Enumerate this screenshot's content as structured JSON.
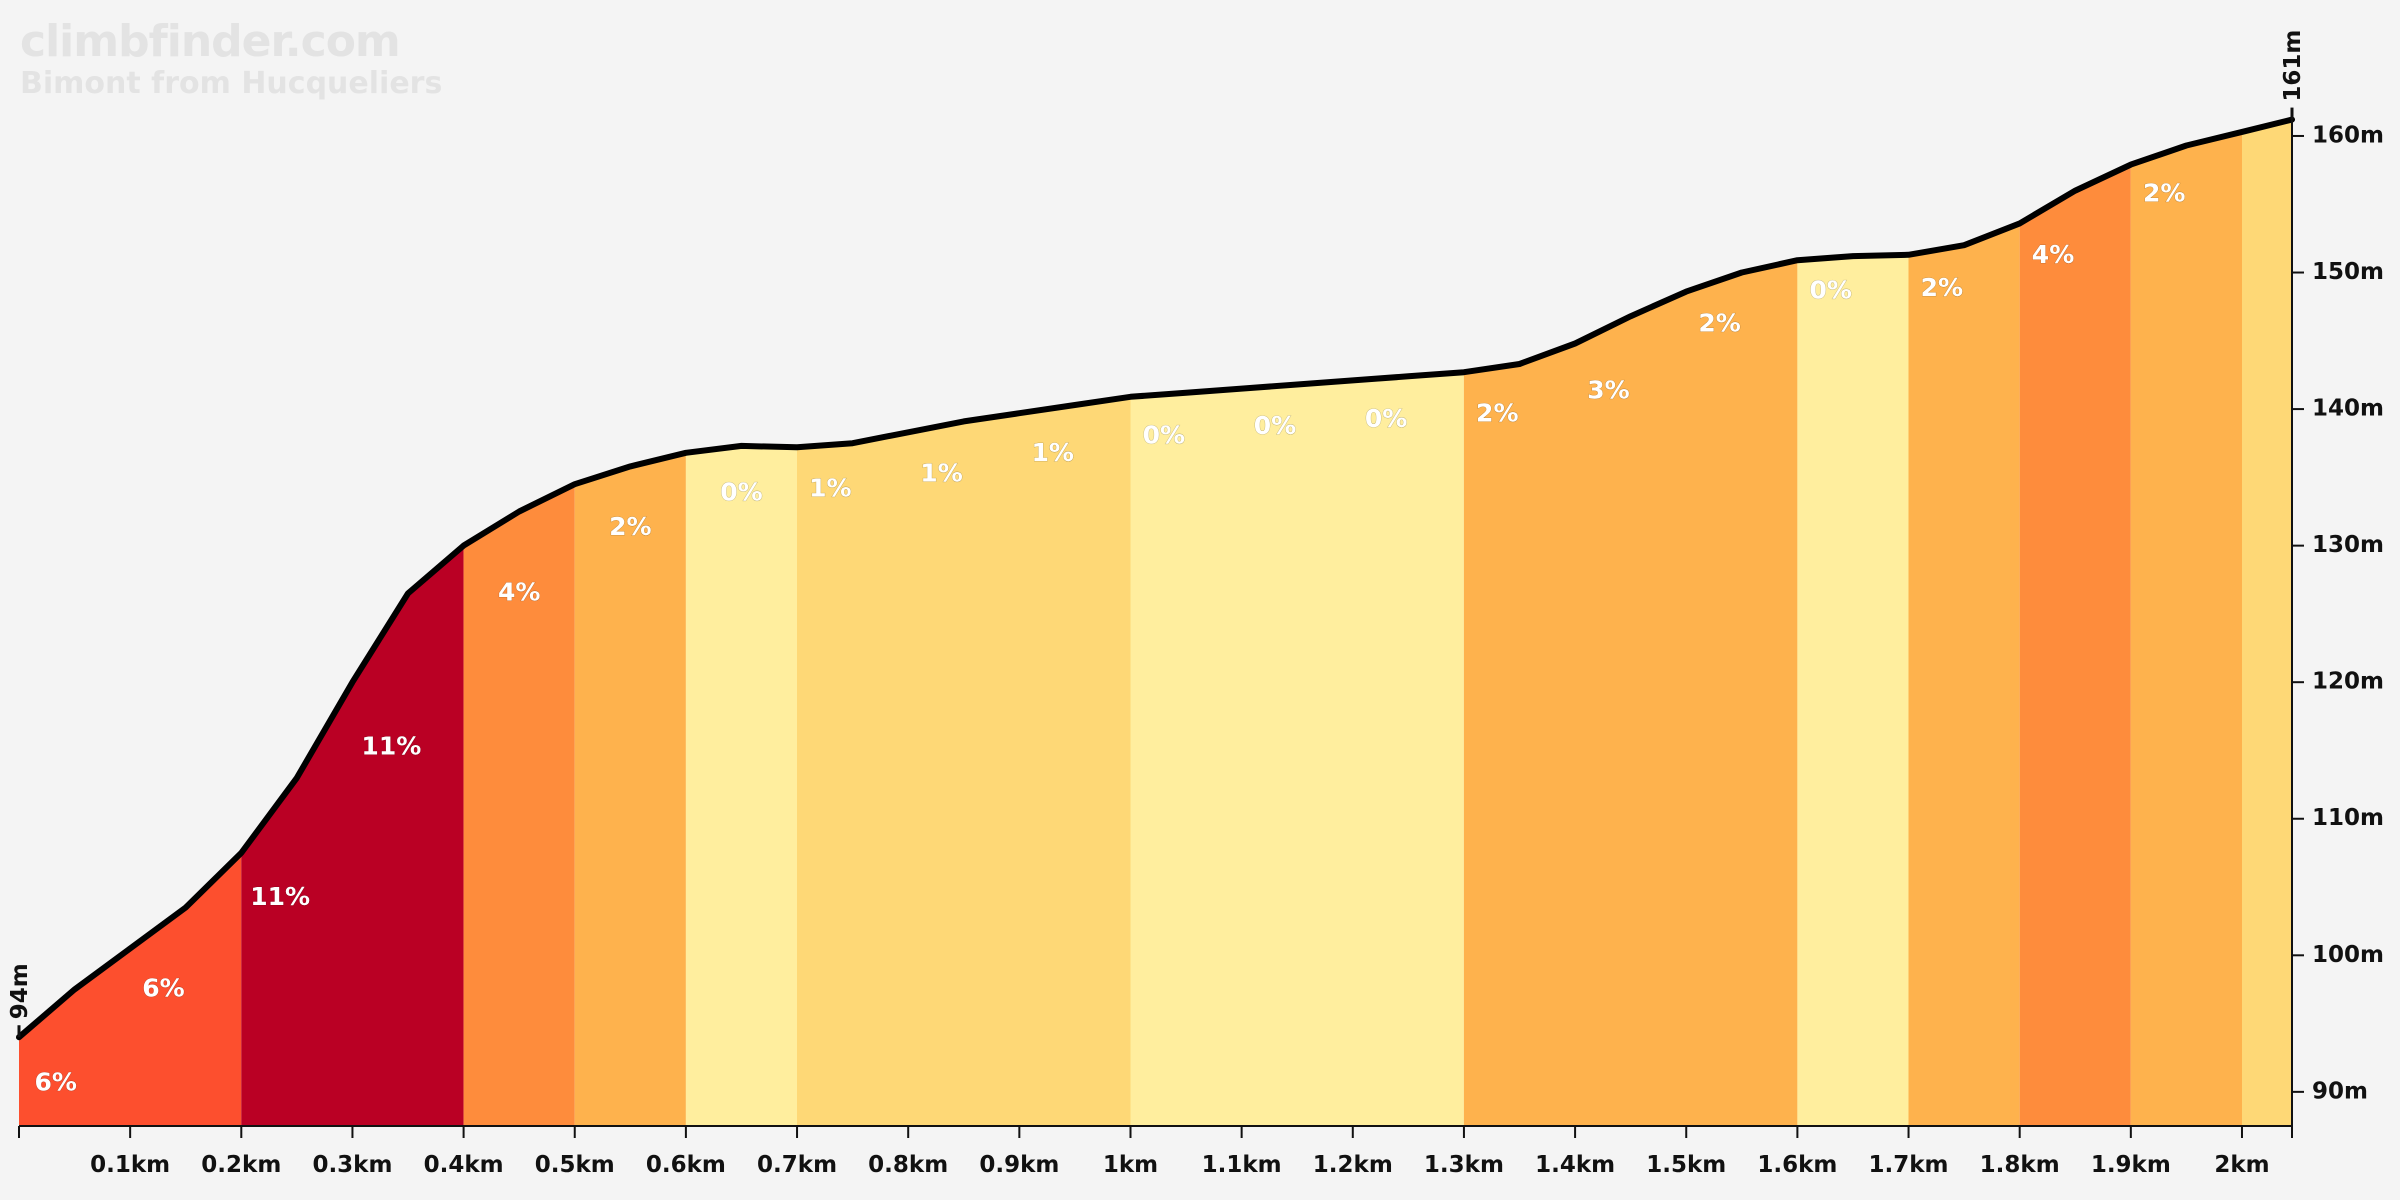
{
  "brand": {
    "site": "climbfinder.com",
    "climb": "Bimont from Hucqueliers"
  },
  "chart_data": {
    "type": "area",
    "title": "",
    "xlabel": "",
    "ylabel": "",
    "xlim": [
      0,
      2.045
    ],
    "ylim": [
      87.5,
      163
    ],
    "start_label": "94m",
    "end_label": "161m",
    "x_ticks": [
      {
        "v": 0.1,
        "label": "0.1km"
      },
      {
        "v": 0.2,
        "label": "0.2km"
      },
      {
        "v": 0.3,
        "label": "0.3km"
      },
      {
        "v": 0.4,
        "label": "0.4km"
      },
      {
        "v": 0.5,
        "label": "0.5km"
      },
      {
        "v": 0.6,
        "label": "0.6km"
      },
      {
        "v": 0.7,
        "label": "0.7km"
      },
      {
        "v": 0.8,
        "label": "0.8km"
      },
      {
        "v": 0.9,
        "label": "0.9km"
      },
      {
        "v": 1.0,
        "label": "1km"
      },
      {
        "v": 1.1,
        "label": "1.1km"
      },
      {
        "v": 1.2,
        "label": "1.2km"
      },
      {
        "v": 1.3,
        "label": "1.3km"
      },
      {
        "v": 1.4,
        "label": "1.4km"
      },
      {
        "v": 1.5,
        "label": "1.5km"
      },
      {
        "v": 1.6,
        "label": "1.6km"
      },
      {
        "v": 1.7,
        "label": "1.7km"
      },
      {
        "v": 1.8,
        "label": "1.8km"
      },
      {
        "v": 1.9,
        "label": "1.9km"
      },
      {
        "v": 2.0,
        "label": "2km"
      }
    ],
    "y_ticks": [
      {
        "v": 90,
        "label": "90m"
      },
      {
        "v": 100,
        "label": "100m"
      },
      {
        "v": 110,
        "label": "110m"
      },
      {
        "v": 120,
        "label": "120m"
      },
      {
        "v": 130,
        "label": "130m"
      },
      {
        "v": 140,
        "label": "140m"
      },
      {
        "v": 150,
        "label": "150m"
      },
      {
        "v": 160,
        "label": "160m"
      }
    ],
    "profile": [
      [
        0,
        94
      ],
      [
        0.05,
        97.5
      ],
      [
        0.1,
        100.5
      ],
      [
        0.15,
        103.5
      ],
      [
        0.2,
        107.5
      ],
      [
        0.25,
        113
      ],
      [
        0.3,
        120
      ],
      [
        0.35,
        126.5
      ],
      [
        0.4,
        130
      ],
      [
        0.45,
        132.5
      ],
      [
        0.5,
        134.5
      ],
      [
        0.55,
        135.8
      ],
      [
        0.6,
        136.8
      ],
      [
        0.65,
        137.3
      ],
      [
        0.7,
        137.2
      ],
      [
        0.75,
        137.5
      ],
      [
        0.8,
        138.3
      ],
      [
        0.85,
        139.1
      ],
      [
        0.9,
        139.7
      ],
      [
        0.95,
        140.3
      ],
      [
        1.0,
        140.9
      ],
      [
        1.05,
        141.2
      ],
      [
        1.1,
        141.5
      ],
      [
        1.15,
        141.8
      ],
      [
        1.2,
        142.1
      ],
      [
        1.25,
        142.4
      ],
      [
        1.3,
        142.7
      ],
      [
        1.35,
        143.3
      ],
      [
        1.4,
        144.8
      ],
      [
        1.45,
        146.8
      ],
      [
        1.5,
        148.6
      ],
      [
        1.55,
        150.0
      ],
      [
        1.6,
        150.9
      ],
      [
        1.65,
        151.2
      ],
      [
        1.7,
        151.3
      ],
      [
        1.75,
        152.0
      ],
      [
        1.8,
        153.6
      ],
      [
        1.85,
        156.0
      ],
      [
        1.9,
        157.9
      ],
      [
        1.95,
        159.3
      ],
      [
        2.0,
        160.3
      ],
      [
        2.045,
        161.2
      ]
    ],
    "segments": [
      {
        "x0": 0.0,
        "x1": 0.2,
        "color": "#fd4f2e",
        "labels": [
          {
            "x": 0.033,
            "y": 90.6,
            "text": "6%"
          },
          {
            "x": 0.13,
            "y": 97.5,
            "text": "6%"
          }
        ]
      },
      {
        "x0": 0.2,
        "x1": 0.4,
        "color": "#ba0024",
        "labels": [
          {
            "x": 0.235,
            "y": 104.2,
            "text": "11%"
          },
          {
            "x": 0.335,
            "y": 115.2,
            "text": "11%"
          }
        ]
      },
      {
        "x0": 0.4,
        "x1": 0.5,
        "color": "#fe8c3c",
        "labels": [
          {
            "x": 0.45,
            "y": 126.5,
            "text": "4%"
          }
        ]
      },
      {
        "x0": 0.5,
        "x1": 0.6,
        "color": "#feb24d",
        "labels": [
          {
            "x": 0.55,
            "y": 131.3,
            "text": "2%"
          }
        ]
      },
      {
        "x0": 0.6,
        "x1": 0.7,
        "color": "#ffee9e",
        "labels": [
          {
            "x": 0.65,
            "y": 133.8,
            "text": "0%"
          }
        ]
      },
      {
        "x0": 0.7,
        "x1": 1.0,
        "color": "#fed876",
        "labels": [
          {
            "x": 0.73,
            "y": 134.1,
            "text": "1%"
          },
          {
            "x": 0.83,
            "y": 135.2,
            "text": "1%"
          },
          {
            "x": 0.93,
            "y": 136.7,
            "text": "1%"
          }
        ]
      },
      {
        "x0": 1.0,
        "x1": 1.3,
        "color": "#ffee9e",
        "labels": [
          {
            "x": 1.03,
            "y": 138.0,
            "text": "0%"
          },
          {
            "x": 1.13,
            "y": 138.7,
            "text": "0%"
          },
          {
            "x": 1.23,
            "y": 139.2,
            "text": "0%"
          }
        ]
      },
      {
        "x0": 1.3,
        "x1": 1.6,
        "color": "#feb24d",
        "labels": [
          {
            "x": 1.33,
            "y": 139.6,
            "text": "2%"
          },
          {
            "x": 1.43,
            "y": 141.3,
            "text": "3%"
          },
          {
            "x": 1.53,
            "y": 146.2,
            "text": "2%"
          }
        ]
      },
      {
        "x0": 1.6,
        "x1": 1.7,
        "color": "#ffee9e",
        "labels": [
          {
            "x": 1.63,
            "y": 148.6,
            "text": "0%"
          }
        ]
      },
      {
        "x0": 1.7,
        "x1": 1.8,
        "color": "#feb24d",
        "labels": [
          {
            "x": 1.73,
            "y": 148.8,
            "text": "2%"
          }
        ]
      },
      {
        "x0": 1.8,
        "x1": 1.9,
        "color": "#fe8c3c",
        "labels": [
          {
            "x": 1.83,
            "y": 151.2,
            "text": "4%"
          }
        ]
      },
      {
        "x0": 1.9,
        "x1": 2.0,
        "color": "#feb24d",
        "labels": [
          {
            "x": 1.93,
            "y": 155.7,
            "text": "2%"
          }
        ]
      },
      {
        "x0": 2.0,
        "x1": 2.045,
        "color": "#fed876",
        "labels": []
      }
    ],
    "grid": false,
    "line_color": "#000000"
  }
}
